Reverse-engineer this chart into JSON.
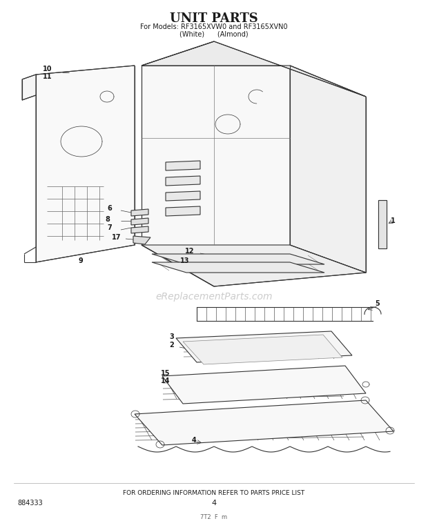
{
  "title": "UNIT PARTS",
  "subtitle1": "For Models: RF3165XVW0 and RF3165XVN0",
  "subtitle2": "(White)      (Almond)",
  "footer": "FOR ORDERING INFORMATION REFER TO PARTS PRICE LIST",
  "part_number": "884333",
  "page_number": "4",
  "watermark": "eReplacementParts.com",
  "bg_color": "#ffffff",
  "line_color": "#333333",
  "text_color": "#1a1a1a",
  "watermark_color": "#bbbbbb",
  "figsize": [
    6.2,
    7.68
  ],
  "dpi": 100
}
